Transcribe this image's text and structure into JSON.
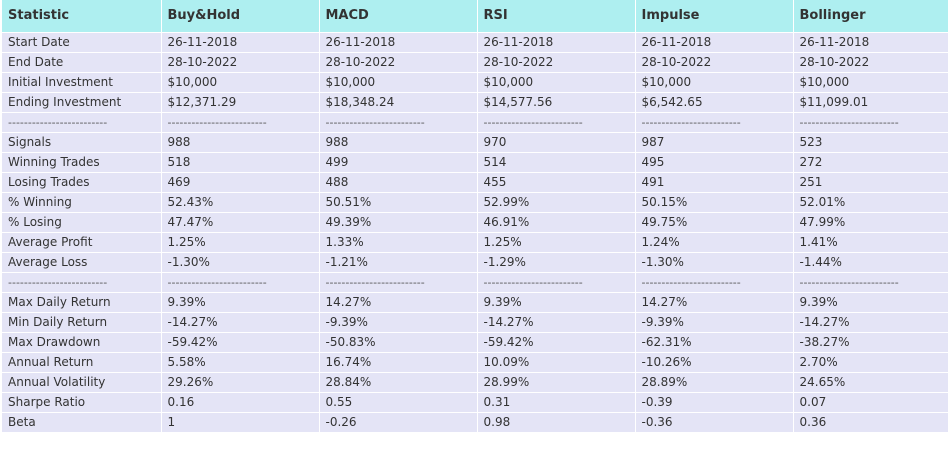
{
  "table": {
    "headers": [
      "Statistic",
      "Buy&Hold",
      "MACD",
      "RSI",
      "Impulse",
      "Bollinger"
    ],
    "rows": [
      [
        "Start Date",
        "26-11-2018",
        "26-11-2018",
        "26-11-2018",
        "26-11-2018",
        "26-11-2018"
      ],
      [
        "End Date",
        "28-10-2022",
        "28-10-2022",
        "28-10-2022",
        "28-10-2022",
        "28-10-2022"
      ],
      [
        "Initial Investment",
        "$10,000",
        "$10,000",
        "$10,000",
        "$10,000",
        "$10,000"
      ],
      [
        "Ending Investment",
        "$12,371.29",
        "$18,348.24",
        "$14,577.56",
        "$6,542.65",
        "$11,099.01"
      ],
      [
        "-------------------------",
        "-------------------------",
        "-------------------------",
        "-------------------------",
        "-------------------------",
        "-------------------------"
      ],
      [
        "Signals",
        "988",
        "988",
        "970",
        "987",
        "523"
      ],
      [
        "Winning Trades",
        "518",
        "499",
        "514",
        "495",
        "272"
      ],
      [
        "Losing Trades",
        "469",
        "488",
        "455",
        "491",
        "251"
      ],
      [
        "% Winning",
        "52.43%",
        "50.51%",
        "52.99%",
        "50.15%",
        "52.01%"
      ],
      [
        "% Losing",
        "47.47%",
        "49.39%",
        "46.91%",
        "49.75%",
        "47.99%"
      ],
      [
        "Average Profit",
        "1.25%",
        "1.33%",
        "1.25%",
        "1.24%",
        "1.41%"
      ],
      [
        "Average Loss",
        "-1.30%",
        "-1.21%",
        "-1.29%",
        "-1.30%",
        "-1.44%"
      ],
      [
        "-------------------------",
        "-------------------------",
        "-------------------------",
        "-------------------------",
        "-------------------------",
        "-------------------------"
      ],
      [
        "Max Daily Return",
        "9.39%",
        "14.27%",
        "9.39%",
        "14.27%",
        "9.39%"
      ],
      [
        "Min Daily Return",
        "-14.27%",
        "-9.39%",
        "-14.27%",
        "-9.39%",
        "-14.27%"
      ],
      [
        "Max Drawdown",
        "-59.42%",
        "-50.83%",
        "-59.42%",
        "-62.31%",
        "-38.27%"
      ],
      [
        "Annual Return",
        "5.58%",
        "16.74%",
        "10.09%",
        "-10.26%",
        "2.70%"
      ],
      [
        "Annual Volatility",
        "29.26%",
        "28.84%",
        "28.99%",
        "28.89%",
        "24.65%"
      ],
      [
        "Sharpe Ratio",
        "0.16",
        "0.55",
        "0.31",
        "-0.39",
        "0.07"
      ],
      [
        "Beta",
        "1",
        "-0.26",
        "0.98",
        "-0.36",
        "0.36"
      ]
    ]
  }
}
